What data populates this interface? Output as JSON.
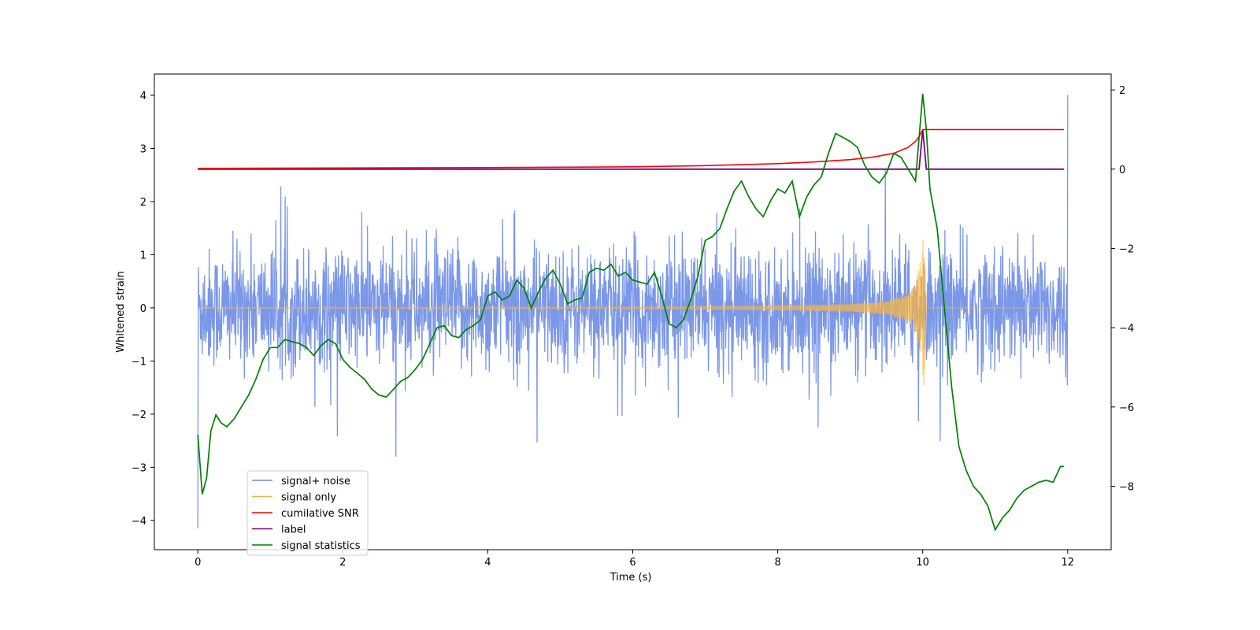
{
  "chart_data": {
    "type": "line",
    "title": "",
    "xlabel": "Time (s)",
    "ylabel": "Whitened strain",
    "y2label": "",
    "xlim": [
      -0.6,
      12.6
    ],
    "ylim": [
      -4.55,
      4.4
    ],
    "y2lim": [
      -9.6,
      2.4
    ],
    "xticks": [
      0,
      2,
      4,
      6,
      8,
      10,
      12
    ],
    "yticks": [
      -4,
      -3,
      -2,
      -1,
      0,
      1,
      2,
      3,
      4
    ],
    "y2ticks": [
      -8,
      -6,
      -4,
      -2,
      0,
      2
    ],
    "grid": false,
    "legend_position": "lower-left",
    "colors": {
      "signal_noise": "#6d8ce6",
      "signal_only": "#f5b546",
      "snr": "#ff0000",
      "label": "#800080",
      "stats": "#008000",
      "axis": "#000000"
    },
    "series": [
      {
        "name": "signal+ noise",
        "axis": "left",
        "description": "dense noise band, amplitude about ±1.5 with spikes to ±2.5, endpoints spikes -4.15 at t=0 and 4.0 at t=12",
        "x_range": [
          0,
          12
        ],
        "amplitude_band": [
          -1.5,
          1.7
        ],
        "extremes": {
          "min": [
            0.0,
            -4.15
          ],
          "max": [
            12.0,
            4.0
          ]
        }
      },
      {
        "name": "signal only",
        "axis": "left",
        "description": "chirp waveform near zero, growing to ±1.5 just before t=10",
        "x": [
          0,
          6,
          8,
          9,
          9.5,
          9.8,
          9.9,
          9.97,
          10.02,
          10.05,
          12
        ],
        "envelope": [
          0.01,
          0.02,
          0.04,
          0.07,
          0.12,
          0.25,
          0.45,
          0.9,
          1.5,
          0.0,
          0.0
        ]
      },
      {
        "name": "cumilative SNR",
        "axis": "right",
        "x": [
          0,
          2,
          4,
          6,
          7,
          8,
          8.5,
          9,
          9.3,
          9.6,
          9.8,
          9.9,
          9.95,
          10.0,
          10.02,
          10.05,
          11.95
        ],
        "y": [
          0.02,
          0.03,
          0.04,
          0.06,
          0.09,
          0.14,
          0.18,
          0.24,
          0.3,
          0.4,
          0.55,
          0.7,
          0.82,
          1.0,
          1.0,
          1.0,
          1.0
        ]
      },
      {
        "name": "label",
        "axis": "right",
        "x": [
          0,
          9.95,
          10.0,
          10.05,
          11.95
        ],
        "y": [
          0.0,
          0.0,
          1.0,
          0.0,
          0.0
        ]
      },
      {
        "name": "signal statistics",
        "axis": "right",
        "x": [
          0.0,
          0.06,
          0.12,
          0.18,
          0.25,
          0.32,
          0.4,
          0.5,
          0.6,
          0.7,
          0.8,
          0.9,
          1.0,
          1.1,
          1.2,
          1.3,
          1.4,
          1.5,
          1.6,
          1.7,
          1.8,
          1.9,
          2.0,
          2.1,
          2.2,
          2.3,
          2.4,
          2.5,
          2.6,
          2.7,
          2.8,
          2.9,
          3.0,
          3.1,
          3.2,
          3.3,
          3.4,
          3.5,
          3.6,
          3.7,
          3.8,
          3.9,
          4.0,
          4.1,
          4.2,
          4.3,
          4.4,
          4.5,
          4.6,
          4.7,
          4.8,
          4.9,
          5.0,
          5.1,
          5.2,
          5.3,
          5.4,
          5.5,
          5.6,
          5.7,
          5.8,
          5.9,
          6.0,
          6.1,
          6.2,
          6.3,
          6.4,
          6.5,
          6.6,
          6.7,
          6.8,
          6.9,
          7.0,
          7.1,
          7.2,
          7.3,
          7.4,
          7.5,
          7.6,
          7.7,
          7.8,
          7.9,
          8.0,
          8.1,
          8.2,
          8.3,
          8.4,
          8.5,
          8.6,
          8.7,
          8.8,
          8.9,
          9.0,
          9.1,
          9.2,
          9.3,
          9.4,
          9.5,
          9.6,
          9.7,
          9.8,
          9.9,
          10.0,
          10.05,
          10.1,
          10.2,
          10.3,
          10.4,
          10.5,
          10.6,
          10.7,
          10.8,
          10.9,
          11.0,
          11.1,
          11.2,
          11.3,
          11.4,
          11.5,
          11.6,
          11.7,
          11.8,
          11.9,
          11.95
        ],
        "y": [
          -6.7,
          -8.2,
          -7.8,
          -6.6,
          -6.2,
          -6.4,
          -6.5,
          -6.3,
          -6.0,
          -5.7,
          -5.3,
          -4.8,
          -4.5,
          -4.5,
          -4.3,
          -4.35,
          -4.4,
          -4.5,
          -4.7,
          -4.45,
          -4.3,
          -4.4,
          -4.8,
          -5.0,
          -5.15,
          -5.3,
          -5.55,
          -5.7,
          -5.75,
          -5.55,
          -5.35,
          -5.25,
          -5.05,
          -4.8,
          -4.4,
          -4.0,
          -3.95,
          -4.2,
          -4.25,
          -4.05,
          -3.95,
          -3.8,
          -3.2,
          -3.1,
          -3.3,
          -3.2,
          -2.8,
          -3.0,
          -3.5,
          -3.1,
          -2.75,
          -2.55,
          -2.9,
          -3.4,
          -3.3,
          -3.25,
          -2.6,
          -2.5,
          -2.55,
          -2.4,
          -2.7,
          -2.6,
          -2.8,
          -2.85,
          -2.9,
          -2.6,
          -3.2,
          -3.9,
          -4.0,
          -3.8,
          -3.3,
          -2.7,
          -1.8,
          -1.7,
          -1.5,
          -1.0,
          -0.55,
          -0.3,
          -0.7,
          -1.0,
          -1.2,
          -0.8,
          -0.5,
          -0.6,
          -0.3,
          -1.2,
          -0.7,
          -0.4,
          -0.2,
          0.4,
          0.9,
          0.8,
          0.7,
          0.55,
          0.1,
          -0.2,
          -0.35,
          -0.1,
          0.4,
          0.3,
          0.0,
          -0.3,
          1.9,
          1.0,
          -0.5,
          -1.5,
          -3.5,
          -5.5,
          -7.0,
          -7.6,
          -8.0,
          -8.2,
          -8.5,
          -9.1,
          -8.8,
          -8.6,
          -8.3,
          -8.1,
          -8.0,
          -7.9,
          -7.85,
          -7.9,
          -7.5,
          -7.5
        ]
      }
    ],
    "legend": [
      "signal+ noise",
      "signal only",
      "cumilative SNR",
      "label",
      "signal statistics"
    ]
  }
}
